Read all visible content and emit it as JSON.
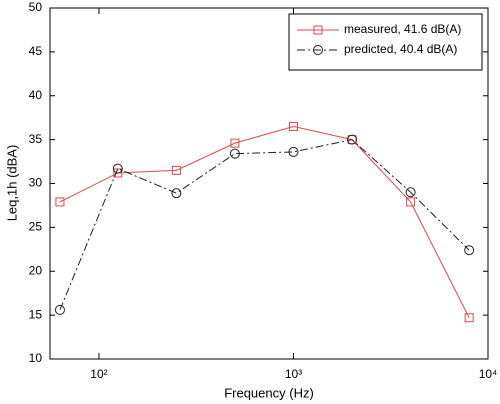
{
  "chart_data": {
    "type": "line",
    "log_x": true,
    "x_label": "Frequency (Hz)",
    "y_label": "Leq,1h (dBA)",
    "x": [
      63,
      125,
      250,
      500,
      1000,
      2000,
      4000,
      8000
    ],
    "series": [
      {
        "name": "measured, 41.6 dB(A)",
        "color": "#e0474c",
        "marker": "square",
        "dash": false,
        "values": [
          27.9,
          31.2,
          31.5,
          34.6,
          36.5,
          35,
          27.9,
          14.7
        ]
      },
      {
        "name": "predicted, 40.4 dB(A)",
        "color": "#222222",
        "marker": "circle",
        "dash": true,
        "values": [
          15.6,
          31.7,
          28.9,
          33.4,
          33.6,
          35,
          29,
          22.4
        ]
      }
    ],
    "xlim": [
      56,
      10000
    ],
    "xticks": [
      {
        "value": 100,
        "label": "10²"
      },
      {
        "value": 1000,
        "label": "10³"
      },
      {
        "value": 10000,
        "label": "10⁴"
      }
    ],
    "ylim": [
      10,
      50
    ],
    "yticks": [
      10,
      15,
      20,
      25,
      30,
      35,
      40,
      45,
      50
    ],
    "legend": "upper right"
  }
}
